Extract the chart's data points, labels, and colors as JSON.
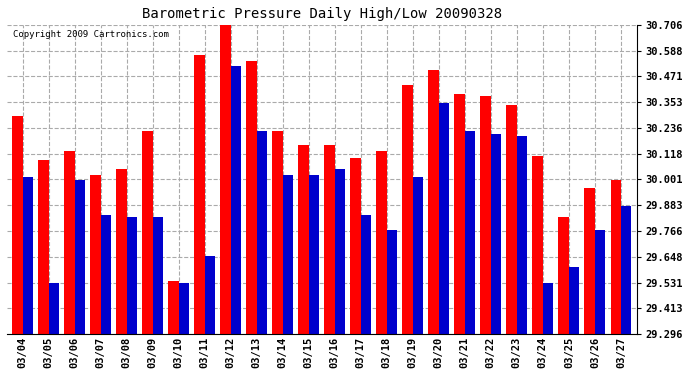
{
  "title": "Barometric Pressure Daily High/Low 20090328",
  "copyright": "Copyright 2009 Cartronics.com",
  "dates": [
    "03/04",
    "03/05",
    "03/06",
    "03/07",
    "03/08",
    "03/09",
    "03/10",
    "03/11",
    "03/12",
    "03/13",
    "03/14",
    "03/15",
    "03/16",
    "03/17",
    "03/18",
    "03/19",
    "03/20",
    "03/21",
    "03/22",
    "03/23",
    "03/24",
    "03/25",
    "03/26",
    "03/27"
  ],
  "highs": [
    30.29,
    30.09,
    30.13,
    30.02,
    30.05,
    30.22,
    29.54,
    30.57,
    30.71,
    30.54,
    30.22,
    30.16,
    30.16,
    30.1,
    30.13,
    30.43,
    30.5,
    30.39,
    30.38,
    30.34,
    30.11,
    29.83,
    29.96,
    30.0
  ],
  "lows": [
    30.01,
    29.53,
    30.0,
    29.84,
    29.83,
    29.83,
    29.53,
    29.65,
    30.52,
    30.22,
    30.02,
    30.02,
    30.05,
    29.84,
    29.77,
    30.01,
    30.35,
    30.22,
    30.21,
    30.2,
    29.53,
    29.6,
    29.77,
    29.88
  ],
  "high_color": "#ff0000",
  "low_color": "#0000cc",
  "bg_color": "#ffffff",
  "grid_color": "#aaaaaa",
  "ymin": 29.296,
  "ymax": 30.706,
  "yticks": [
    29.296,
    29.413,
    29.531,
    29.648,
    29.766,
    29.883,
    30.001,
    30.118,
    30.236,
    30.353,
    30.471,
    30.588,
    30.706
  ]
}
